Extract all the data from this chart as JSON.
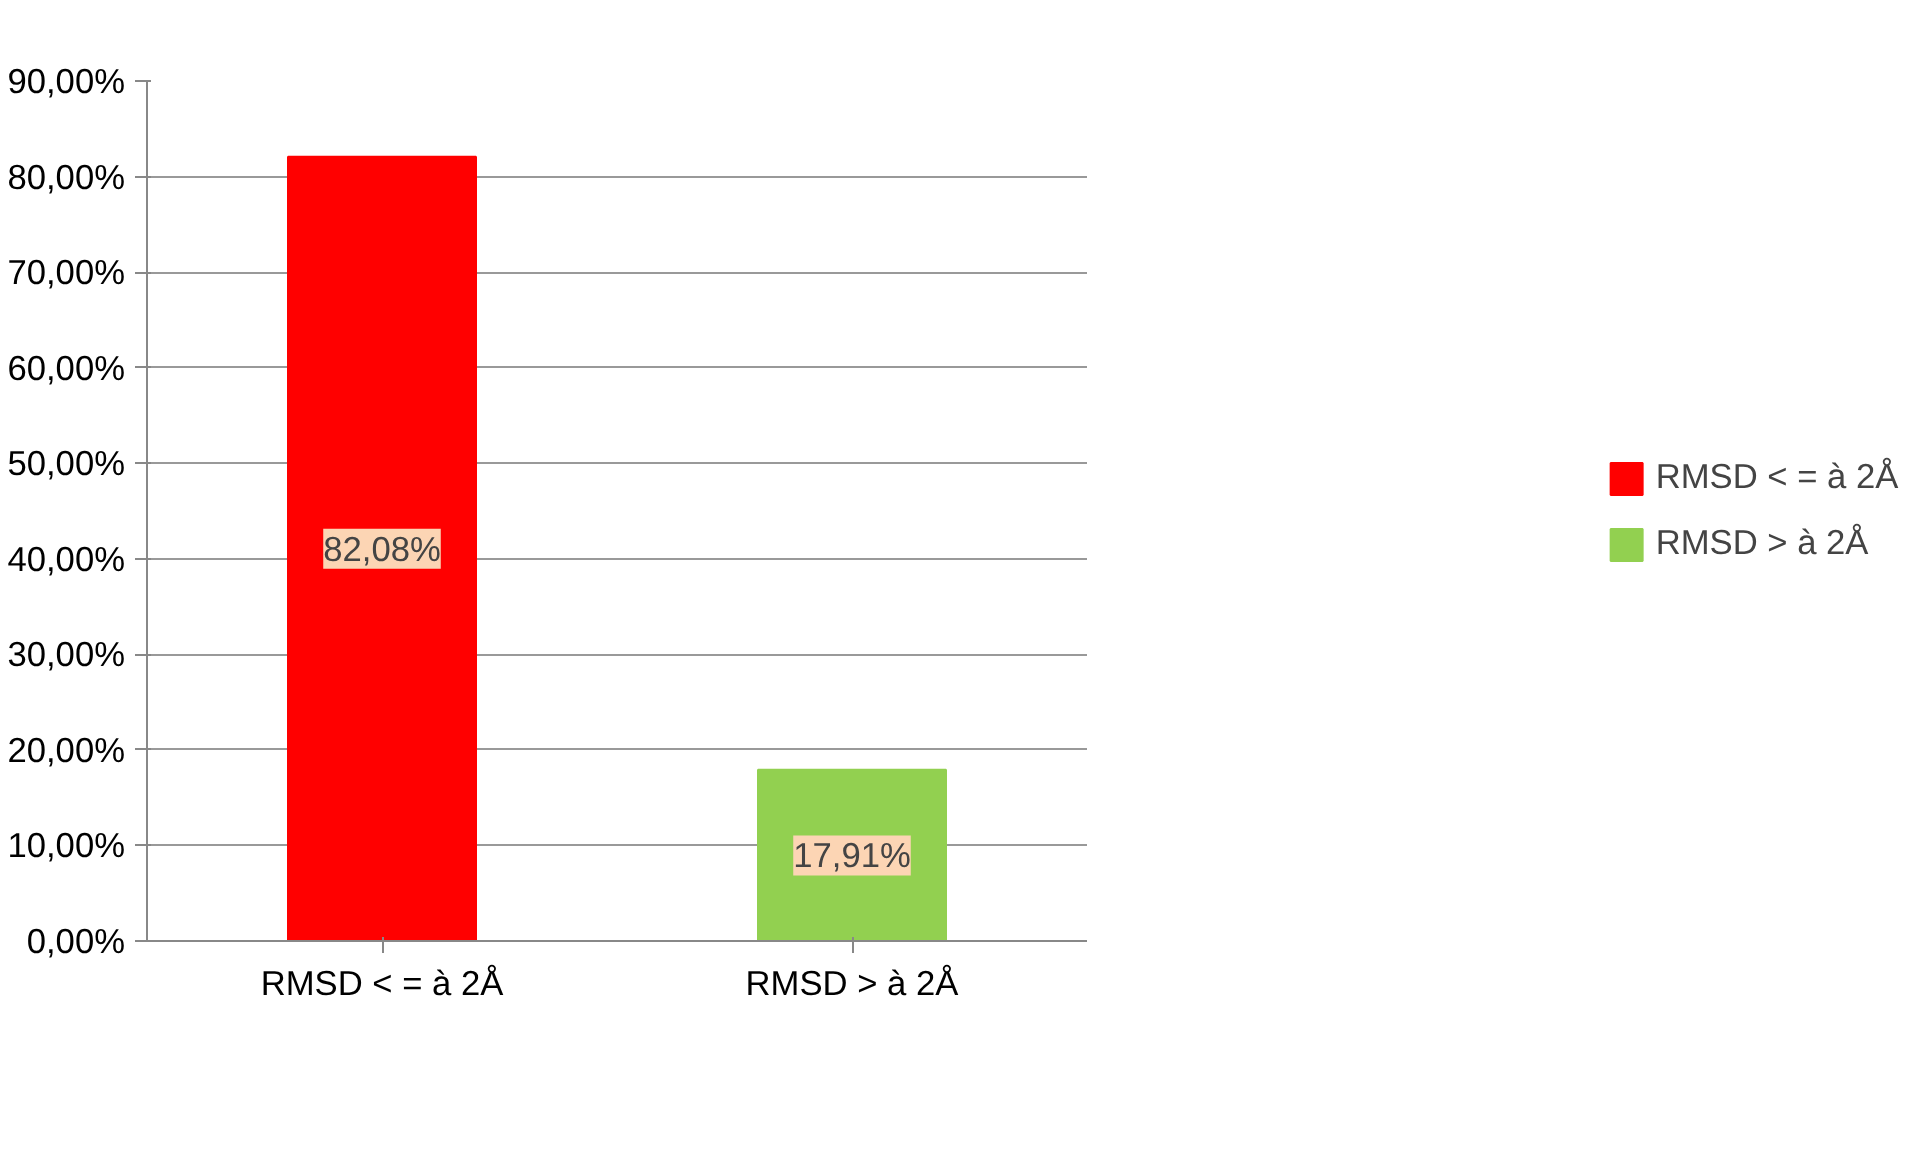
{
  "chart_data": {
    "type": "bar",
    "categories": [
      "RMSD < = à 2Å",
      "RMSD > à 2Å"
    ],
    "series": [
      {
        "name": "RMSD < = à 2Å",
        "color": "#ff0000",
        "values": [
          82.08,
          null
        ],
        "value_labels": [
          "82,08%",
          null
        ]
      },
      {
        "name": "RMSD > à 2Å",
        "color": "#92d050",
        "values": [
          null,
          17.91
        ],
        "value_labels": [
          null,
          "17,91%"
        ]
      }
    ],
    "ylim": [
      0,
      90
    ],
    "yticks": [
      {
        "value": 0,
        "label": "0,00%"
      },
      {
        "value": 10,
        "label": "10,00%"
      },
      {
        "value": 20,
        "label": "20,00%"
      },
      {
        "value": 30,
        "label": "30,00%"
      },
      {
        "value": 40,
        "label": "40,00%"
      },
      {
        "value": 50,
        "label": "50,00%"
      },
      {
        "value": 60,
        "label": "60,00%"
      },
      {
        "value": 70,
        "label": "70,00%"
      },
      {
        "value": 80,
        "label": "80,00%"
      },
      {
        "value": 90,
        "label": "90,00%"
      }
    ],
    "grid": "y",
    "legend": "right"
  }
}
